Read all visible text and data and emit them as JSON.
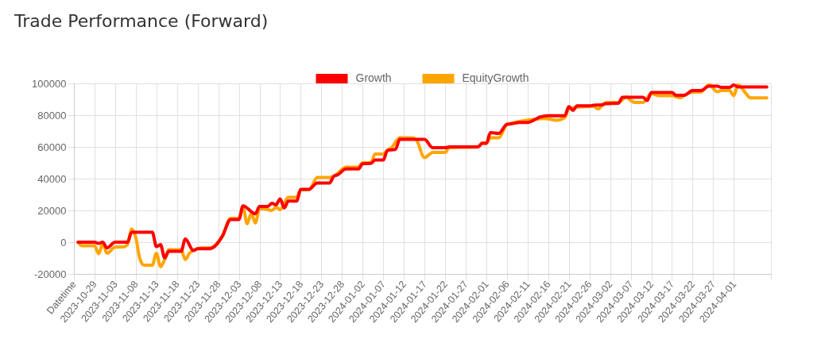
{
  "chart_data": {
    "type": "line",
    "title": "Trade Performance (Forward)",
    "legend": "top",
    "grid": true,
    "marker": "none",
    "xlim": [
      "2023-10-24",
      "2024-04-10"
    ],
    "ylim": [
      -20000,
      100000
    ],
    "yticks": [
      -20000,
      0,
      20000,
      40000,
      60000,
      80000,
      100000
    ],
    "xticks": [
      {
        "value": "2023-10-24",
        "label": "Datetime"
      },
      "2023-10-29",
      "2023-11-03",
      "2023-11-08",
      "2023-11-13",
      "2023-11-18",
      "2023-11-23",
      "2023-11-28",
      "2023-12-03",
      "2023-12-08",
      "2023-12-13",
      "2023-12-18",
      "2023-12-23",
      "2023-12-28",
      "2024-01-02",
      "2024-01-07",
      "2024-01-12",
      "2024-01-17",
      "2024-01-22",
      "2024-01-27",
      "2024-02-01",
      "2024-02-06",
      "2024-02-11",
      "2024-02-16",
      "2024-02-21",
      "2024-02-26",
      "2024-03-02",
      "2024-03-07",
      "2024-03-12",
      "2024-03-17",
      "2024-03-22",
      "2024-03-27",
      "2024-04-01",
      {
        "value": "2024-04-10",
        "label": null
      }
    ],
    "series": [
      {
        "name": "Growth",
        "color": "#ff0000",
        "x": [
          "2023-10-25",
          "2023-10-29",
          "2023-10-30",
          "2023-10-31",
          "2023-11-01",
          "2023-11-03",
          "2023-11-06",
          "2023-11-07",
          "2023-11-12",
          "2023-11-13",
          "2023-11-14",
          "2023-11-15",
          "2023-11-16",
          "2023-11-19",
          "2023-11-20",
          "2023-11-22",
          "2023-11-23",
          "2023-11-26",
          "2023-11-29",
          "2023-12-01",
          "2023-12-03",
          "2023-12-04",
          "2023-12-07",
          "2023-12-08",
          "2023-12-10",
          "2023-12-11",
          "2023-12-12",
          "2023-12-13",
          "2023-12-14",
          "2023-12-15",
          "2023-12-17",
          "2023-12-18",
          "2023-12-20",
          "2023-12-22",
          "2023-12-25",
          "2023-12-26",
          "2023-12-27",
          "2023-12-29",
          "2024-01-01",
          "2024-01-02",
          "2024-01-04",
          "2024-01-05",
          "2024-01-07",
          "2024-01-08",
          "2024-01-10",
          "2024-01-11",
          "2024-01-17",
          "2024-01-19",
          "2024-01-22",
          "2024-01-23",
          "2024-01-30",
          "2024-01-31",
          "2024-02-01",
          "2024-02-02",
          "2024-02-04",
          "2024-02-06",
          "2024-02-07",
          "2024-02-09",
          "2024-02-11",
          "2024-02-13",
          "2024-02-14",
          "2024-02-16",
          "2024-02-20",
          "2024-02-21",
          "2024-02-22",
          "2024-02-23",
          "2024-02-26",
          "2024-02-27",
          "2024-02-29",
          "2024-03-01",
          "2024-03-04",
          "2024-03-05",
          "2024-03-10",
          "2024-03-11",
          "2024-03-12",
          "2024-03-17",
          "2024-03-18",
          "2024-03-20",
          "2024-03-22",
          "2024-03-24",
          "2024-03-26",
          "2024-03-28",
          "2024-03-29",
          "2024-03-31",
          "2024-04-01",
          "2024-04-02",
          "2024-04-09"
        ],
        "values": [
          0,
          0,
          -800,
          0,
          -3600,
          0,
          0,
          6300,
          6300,
          -2800,
          -1500,
          -10000,
          -5800,
          -5800,
          2000,
          -5300,
          -4100,
          -4100,
          3800,
          14300,
          14300,
          22900,
          17900,
          22500,
          22500,
          24500,
          23500,
          27300,
          21500,
          25900,
          25900,
          33200,
          33300,
          37300,
          37300,
          41500,
          42500,
          46100,
          46100,
          49400,
          49600,
          51700,
          51700,
          57700,
          58500,
          64700,
          64700,
          59500,
          59500,
          60000,
          60000,
          62300,
          62300,
          69000,
          68500,
          74300,
          74500,
          75400,
          75400,
          77500,
          78800,
          79600,
          79600,
          85400,
          83000,
          85900,
          85900,
          86200,
          86500,
          87200,
          87500,
          91200,
          91200,
          89200,
          94200,
          94200,
          92500,
          92500,
          95500,
          95500,
          98300,
          98300,
          97500,
          97500,
          99000,
          97800,
          97800
        ]
      },
      {
        "name": "EquityGrowth",
        "color": "#ffa500",
        "x": [
          "2023-10-25",
          "2023-10-26",
          "2023-10-29",
          "2023-10-30",
          "2023-10-31",
          "2023-11-01",
          "2023-11-03",
          "2023-11-05",
          "2023-11-06",
          "2023-11-07",
          "2023-11-08",
          "2023-11-09",
          "2023-11-10",
          "2023-11-12",
          "2023-11-13",
          "2023-11-14",
          "2023-11-15",
          "2023-11-16",
          "2023-11-19",
          "2023-11-20",
          "2023-11-21",
          "2023-11-22",
          "2023-11-24",
          "2023-11-26",
          "2023-11-29",
          "2023-12-01",
          "2023-12-03",
          "2023-12-04",
          "2023-12-05",
          "2023-12-06",
          "2023-12-07",
          "2023-12-08",
          "2023-12-09",
          "2023-12-11",
          "2023-12-12",
          "2023-12-13",
          "2023-12-15",
          "2023-12-17",
          "2023-12-18",
          "2023-12-20",
          "2023-12-22",
          "2023-12-25",
          "2023-12-26",
          "2023-12-29",
          "2024-01-01",
          "2024-01-02",
          "2024-01-04",
          "2024-01-05",
          "2024-01-07",
          "2024-01-08",
          "2024-01-09",
          "2024-01-11",
          "2024-01-14",
          "2024-01-15",
          "2024-01-17",
          "2024-01-19",
          "2024-01-22",
          "2024-01-23",
          "2024-01-30",
          "2024-01-31",
          "2024-02-01",
          "2024-02-02",
          "2024-02-04",
          "2024-02-06",
          "2024-02-13",
          "2024-02-15",
          "2024-02-16",
          "2024-02-18",
          "2024-02-20",
          "2024-02-21",
          "2024-02-23",
          "2024-02-27",
          "2024-02-28",
          "2024-03-01",
          "2024-03-04",
          "2024-03-06",
          "2024-03-07",
          "2024-03-08",
          "2024-03-10",
          "2024-03-12",
          "2024-03-14",
          "2024-03-17",
          "2024-03-19",
          "2024-03-20",
          "2024-03-22",
          "2024-03-24",
          "2024-03-26",
          "2024-03-28",
          "2024-03-29",
          "2024-03-31",
          "2024-04-01",
          "2024-04-02",
          "2024-04-04",
          "2024-04-05",
          "2024-04-09"
        ],
        "values": [
          0,
          -2300,
          -2300,
          -7300,
          -1000,
          -7000,
          -3100,
          -3000,
          -1500,
          8300,
          3000,
          -10600,
          -14500,
          -14500,
          -7000,
          -15500,
          -11000,
          -4800,
          -4800,
          -11000,
          -7000,
          -5000,
          -3600,
          -3600,
          3800,
          15000,
          15000,
          22000,
          11600,
          18000,
          12100,
          21000,
          21000,
          20000,
          22000,
          20500,
          28200,
          28200,
          33000,
          33000,
          40800,
          40800,
          41500,
          47300,
          47300,
          50000,
          50000,
          55500,
          55500,
          58000,
          59500,
          65700,
          65700,
          64500,
          53200,
          56500,
          56500,
          59500,
          60000,
          62500,
          62300,
          65700,
          65700,
          74000,
          77500,
          77900,
          77600,
          76800,
          78500,
          84000,
          85000,
          85500,
          83900,
          87900,
          88000,
          91500,
          89200,
          88000,
          88000,
          93500,
          92200,
          92200,
          90900,
          92500,
          94500,
          94500,
          99100,
          94700,
          95500,
          95500,
          92200,
          99000,
          93400,
          90900,
          90900
        ]
      }
    ]
  }
}
